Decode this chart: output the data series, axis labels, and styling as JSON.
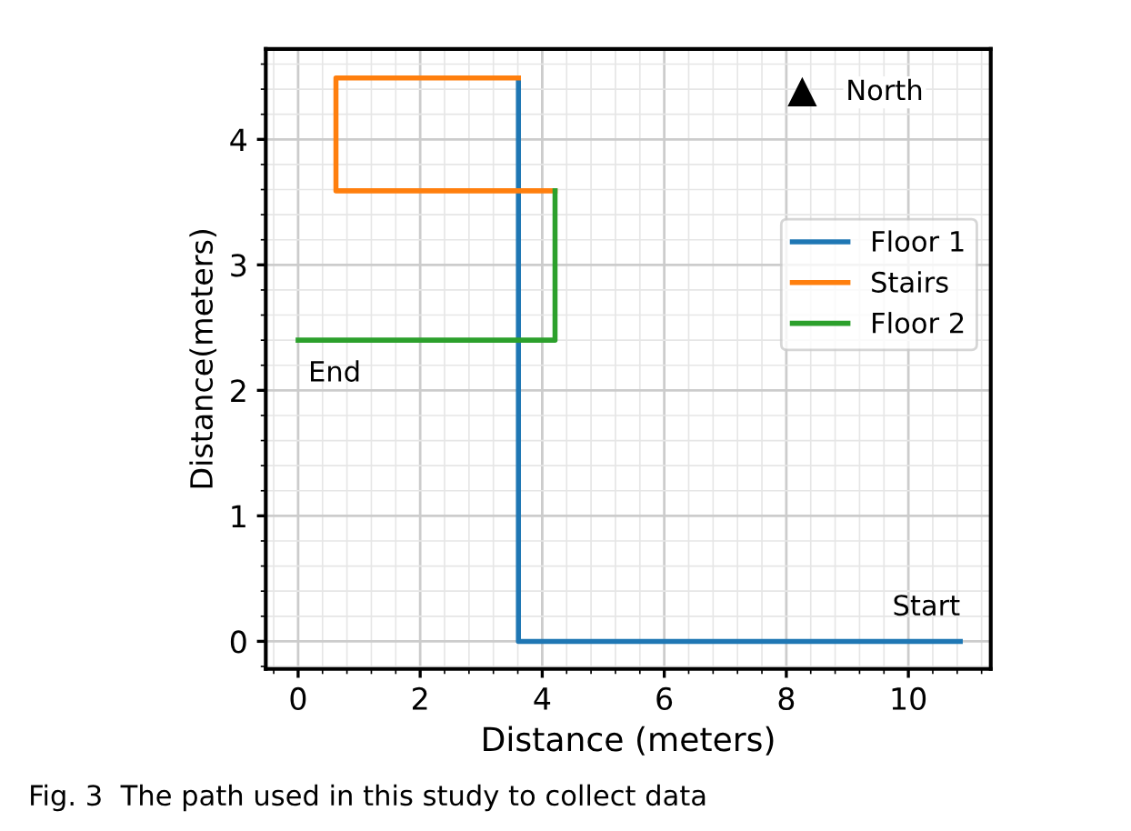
{
  "chart_data": {
    "type": "line",
    "xlabel": "Distance (meters)",
    "ylabel": "Distance(meters)",
    "series": [
      {
        "name": "Floor 1",
        "color": "#1f77b4",
        "x": [
          10.85,
          3.61,
          3.61
        ],
        "values": [
          0,
          0,
          4.49
        ]
      },
      {
        "name": "Stairs",
        "color": "#ff7f0e",
        "x": [
          3.61,
          0.62,
          0.62,
          4.21
        ],
        "values": [
          4.49,
          4.49,
          3.59,
          3.59
        ]
      },
      {
        "name": "Floor 2",
        "color": "#2ca02c",
        "x": [
          4.21,
          4.21,
          0
        ],
        "values": [
          3.59,
          2.4,
          2.4
        ]
      }
    ],
    "xlim": [
      -0.53,
      11.35
    ],
    "ylim": [
      -0.22,
      4.72
    ],
    "xticks": [
      0,
      2,
      4,
      6,
      8,
      10
    ],
    "yticks": [
      0,
      1,
      2,
      3,
      4
    ],
    "grid": true,
    "legend": "right",
    "marker": "none",
    "line_style": "solid",
    "annotations": [
      {
        "text": "Start",
        "x": 10.85,
        "y": 0
      },
      {
        "text": "End",
        "x": 0,
        "y": 2.4
      },
      "North",
      "Fig. 3  The path used in this study to collect data"
    ]
  }
}
